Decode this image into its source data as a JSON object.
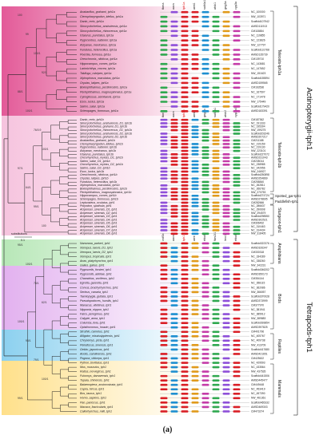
{
  "caption": "(a)",
  "clades": [
    {
      "name": "actinopterygii",
      "label": "Actinopterygii-tph1",
      "y0": 8,
      "y1": 290,
      "color": "#e6679d"
    },
    {
      "name": "tetrapods",
      "label": "Tetrapods-tph1",
      "y0": 300,
      "y1": 520,
      "color": "#d07bd8"
    }
  ],
  "group_labels": [
    {
      "label": "Teleosts-tph1a",
      "y0": 14,
      "y1": 142
    },
    {
      "label": "Teleosts-tph1b",
      "y0": 148,
      "y1": 240
    },
    {
      "label": "Spotted_gar-tph1",
      "y0": 243,
      "y1": 248
    },
    {
      "label": "Paddlefish-tph1",
      "y0": 249,
      "y1": 256
    },
    {
      "label": "Sturgeon-tph1",
      "y0": 257,
      "y1": 295
    },
    {
      "label": "Amphibians",
      "y0": 305,
      "y1": 330
    },
    {
      "label": "Birds",
      "y0": 336,
      "y1": 412
    },
    {
      "label": "Reptiles",
      "y0": 418,
      "y1": 450
    },
    {
      "label": "Mammals",
      "y0": 456,
      "y1": 518
    }
  ],
  "gene_headers_top": [
    "tbma",
    "aacs",
    "tph1a",
    "arnt1",
    "sult4a1",
    "atsk1",
    "gng3a",
    "cyp3a"
  ],
  "gene_headers_mid": [
    "tbma",
    "aacs",
    "tph1b",
    "arnt1",
    "gng3b",
    "sult4a1",
    "atsk2",
    "cyp3a4"
  ],
  "gene_headers_tet": [
    "cstf3c",
    "aacs",
    "tph1",
    "arnt",
    "rhbdf1",
    "fbrs2l1",
    "lmo1",
    "rhbdf1"
  ],
  "scale_label": "substitutions",
  "scale_value": "0.1",
  "species_tph1a": [
    "Anabarilius_grahami_tph1a",
    "Ctenopharyngodon_idellus_tph1a",
    "Danio_rerio_tph1a",
    "Sinocyclocheilus_anshuiensis_tph1a",
    "Sinocyclocheilus_rhinocerous_tph1a",
    "Ictalurus_punctatus_tph1a",
    "Pygocentrus_nattereri_tph1a",
    "Astyanax_mexicanus_tph1a",
    "Fundulus_heteroclitus_tph1a",
    "Poecilia_formosa_tph1a",
    "Oreochromis_niloticus_tph1a",
    "Hippocampus_comes_tph1a",
    "Larimichthys_crocea_tph1a",
    "Takifugu_rubripes_tph1a",
    "Xiphophorus_maculatus_tph1a",
    "Oryzias_latipes_tph1a",
    "Boleophthalmus_pectinirostris_tph1a",
    "Periophthalmus_magnuspinnatus_tph1a",
    "Cynoglossus_semilaevis_tph1a",
    "Esox_lucius_tph1a",
    "Salmo_salar_tph1a",
    "Scleropages_formosus_tph1a"
  ],
  "species_tph1b": [
    "Danio_rerio_tph1b",
    "Sinocyclocheilus_anshuiensis_D1_tph1b",
    "Sinocyclocheilus_grahami_D1_tph1b",
    "Sinocyclocheilus_rhinocerous_D1_tph1b",
    "Sinocyclocheilus_anshuiensis_D2_tph1b",
    "Sinocyclocheilus_grahami_D2_tph1b",
    "Anabarilius_grahami_tph1b",
    "Ctenopharyngodon_idellus_tph1b",
    "Pygocentrus_nattereri_tph1b",
    "Astyanax_mexicanus_tph1b",
    "Ictalurus_punctatus_tph1b",
    "Oncorhynchus_mykiss_D1_tph1b",
    "Salmo_salar_D1_tph1b",
    "Oncorhynchus_mykiss_D2_tph1b",
    "Salmo_salar_D2_tph1b",
    "Esox_lucius_tph1b",
    "Oreochromis_niloticus_tph1b",
    "Oryzias_latipes_tph1b",
    "Fundulus_heteroclitus_tph1b",
    "Xiphophorus_maculatus_tph1b",
    "Boleophthalmus_pectinirostris_tph1b",
    "Periophthalmus_magnuspinnatus_tph1b",
    "Hippocampus_comes_tph1b",
    "Scleropages_formosus_tph1b",
    "Lepisosteus_oculatus_tph1",
    "Polyodon_spathula_tph1",
    "Acipenser_sinensis_D1_tph1",
    "Acipenser_sinensis_D2_tph1",
    "Acipenser_sinensis_D3_tph1",
    "Acipenser_sinensis_D4_tph1",
    "Acipenser_sinensis_D5_tph1",
    "Acipenser_sinensis_D6_tph1",
    "Acipenser_sinensis_D7_tph1",
    "Acipenser_sinensis_D8_tph1"
  ],
  "species_tet": [
    "Nanorana_parkeri_tph1",
    "Xenopus_laevis_D1_tph1",
    "Xenopus_laevis_D2_tph1",
    "Xenopus_tropicalis_tph1",
    "Anas_platyrhynchos_tph1",
    "Gallus_gallus_tph1",
    "Pygoscelis_forsteri_tph1",
    "Pygoscelis_adeliae_tph1",
    "Charadrius_vociferus_tph1",
    "Egretta_garzetta_tph1",
    "Corvus_brachyrhynchos_tph1",
    "Serinus_canaria_tph1",
    "Taeniopygia_guttata_tph1",
    "Pseudopodoces_humilis_tph1",
    "Manacus_vitellinus_tph1",
    "Nipponia_nippon_tph1",
    "Falco_peregrinus_tph1",
    "Calypte_anna_tph1",
    "Columba_livia_tph1",
    "Opisthocomus_hoazin_tph1",
    "Struthio_camelus_tph1",
    "Alligator_mississippiensis_tph1",
    "Chrysemys_picta_tph1",
    "Pelodiscus_sinensis_tph1",
    "Gekko_japonicus_tph1",
    "Anolis_carolinensis_tph1",
    "Pogona_vitticeps_tph1",
    "Python_bivittatus_tph1",
    "Mus_musculus_tph1",
    "Rattus_norvegicus_tph1",
    "Fukomys_damarensis_tph1",
    "Tupaia_chinensis_tph1",
    "Balaenoptera_acutorostrata_tph1",
    "Capra_hircus_tph1",
    "Bos_taurus_tph1",
    "Homo_sapiens_tph1",
    "Pan_paniscus_tph1",
    "Macaca_fascicularis_tph1",
    "Callorhynchus_milii_tph1"
  ],
  "bootstrap": [
    "100",
    "99",
    "100/1",
    "92/1",
    "88/1",
    "100/1",
    "76/0.9",
    "100/1",
    "97/1",
    "64/1",
    "99/1",
    "100",
    "95/1",
    "100/1",
    "78/1",
    "62/1",
    "100/1",
    "93/1",
    "79/1",
    "100/1",
    "99/1"
  ],
  "scaffold_prefix": [
    "NC_",
    "NW_",
    "Scaffold",
    "AMSD",
    "CM",
    "NC_"
  ]
}
